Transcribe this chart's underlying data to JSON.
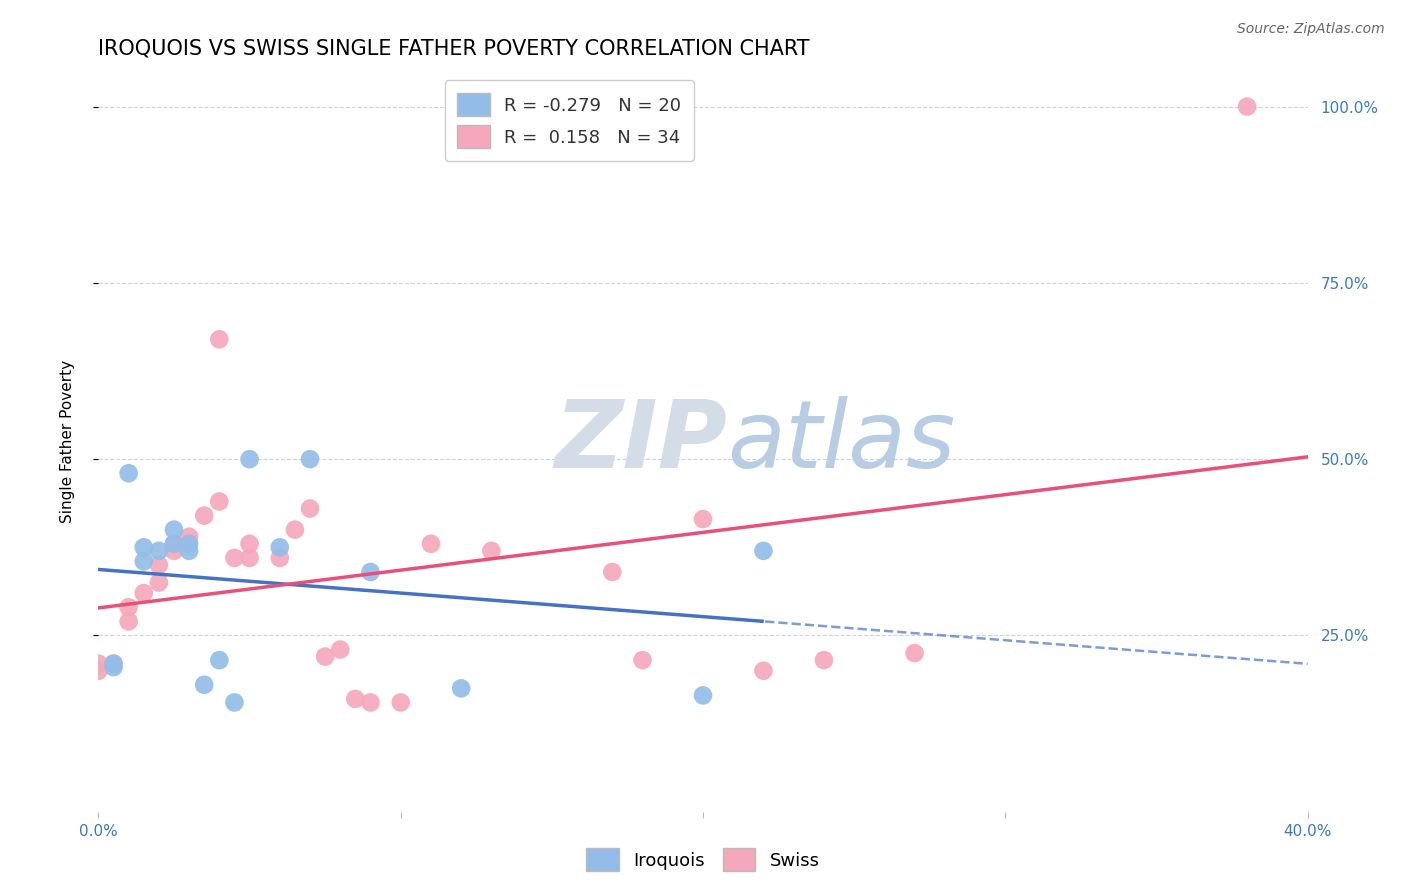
{
  "title": "IROQUOIS VS SWISS SINGLE FATHER POVERTY CORRELATION CHART",
  "source_text": "Source: ZipAtlas.com",
  "ylabel": "Single Father Poverty",
  "xlim": [
    0.0,
    0.4
  ],
  "ylim": [
    0.0,
    1.05
  ],
  "ytick_labels_right": [
    "100.0%",
    "75.0%",
    "50.0%",
    "25.0%"
  ],
  "ytick_vals_right": [
    1.0,
    0.75,
    0.5,
    0.25
  ],
  "iroquois_R": -0.279,
  "iroquois_N": 20,
  "swiss_R": 0.158,
  "swiss_N": 34,
  "iroquois_color": "#93bde8",
  "swiss_color": "#f5a8bc",
  "iroquois_line_color": "#4472c4",
  "swiss_line_color": "#e8507a",
  "background_color": "#ffffff",
  "grid_color": "#d0d0e0",
  "watermark_color": "#d4dce8",
  "title_fontsize": 15,
  "axis_label_fontsize": 11,
  "tick_fontsize": 11,
  "legend_fontsize": 13,
  "iroquois_x": [
    0.005,
    0.005,
    0.01,
    0.015,
    0.015,
    0.02,
    0.025,
    0.025,
    0.03,
    0.03,
    0.035,
    0.04,
    0.045,
    0.05,
    0.06,
    0.07,
    0.09,
    0.12,
    0.2,
    0.22
  ],
  "iroquois_y": [
    0.205,
    0.21,
    0.48,
    0.355,
    0.375,
    0.37,
    0.38,
    0.4,
    0.37,
    0.38,
    0.18,
    0.215,
    0.155,
    0.5,
    0.375,
    0.5,
    0.34,
    0.175,
    0.165,
    0.37
  ],
  "swiss_x": [
    0.0,
    0.0,
    0.005,
    0.01,
    0.01,
    0.015,
    0.02,
    0.02,
    0.025,
    0.025,
    0.03,
    0.035,
    0.04,
    0.04,
    0.045,
    0.05,
    0.05,
    0.06,
    0.065,
    0.07,
    0.075,
    0.08,
    0.085,
    0.09,
    0.1,
    0.11,
    0.13,
    0.17,
    0.18,
    0.2,
    0.22,
    0.24,
    0.27,
    0.38
  ],
  "swiss_y": [
    0.2,
    0.21,
    0.21,
    0.27,
    0.29,
    0.31,
    0.325,
    0.35,
    0.37,
    0.38,
    0.39,
    0.42,
    0.67,
    0.44,
    0.36,
    0.36,
    0.38,
    0.36,
    0.4,
    0.43,
    0.22,
    0.23,
    0.16,
    0.155,
    0.155,
    0.38,
    0.37,
    0.34,
    0.215,
    0.415,
    0.2,
    0.215,
    0.225,
    1.0
  ]
}
